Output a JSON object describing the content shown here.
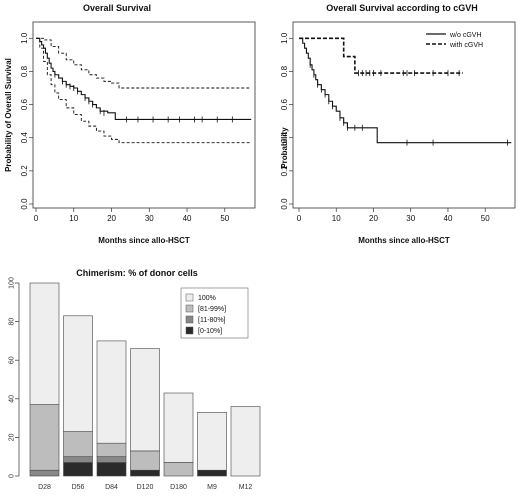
{
  "chart_data": [
    {
      "type": "line",
      "title": "Overall Survival",
      "xlabel": "Months since allo-HSCT",
      "ylabel": "Probability of Overall Survival",
      "xlim": [
        0,
        58
      ],
      "ylim": [
        0,
        1.05
      ],
      "xticks": [
        0,
        10,
        20,
        30,
        40,
        50
      ],
      "yticks": [
        0.0,
        0.2,
        0.4,
        0.6,
        0.8,
        1.0
      ],
      "series": [
        {
          "style": "solid",
          "x": [
            0,
            1,
            1.5,
            2,
            2.5,
            3,
            3.5,
            4,
            4.5,
            5,
            6,
            7,
            8,
            9,
            10,
            11,
            12,
            13,
            14,
            15,
            16,
            17,
            19,
            20,
            21,
            22,
            57
          ],
          "y": [
            1.0,
            0.98,
            0.96,
            0.94,
            0.91,
            0.88,
            0.85,
            0.82,
            0.8,
            0.78,
            0.76,
            0.74,
            0.72,
            0.71,
            0.7,
            0.68,
            0.66,
            0.64,
            0.62,
            0.6,
            0.58,
            0.56,
            0.55,
            0.55,
            0.51,
            0.51,
            0.51
          ]
        },
        {
          "style": "dashed",
          "x": [
            0,
            2,
            4,
            6,
            8,
            10,
            12,
            14,
            16,
            18,
            20,
            22,
            57
          ],
          "y": [
            1.0,
            0.99,
            0.95,
            0.91,
            0.87,
            0.84,
            0.81,
            0.78,
            0.76,
            0.74,
            0.73,
            0.7,
            0.7
          ]
        },
        {
          "style": "dashed",
          "x": [
            0,
            1,
            2,
            3,
            4,
            5,
            6,
            8,
            10,
            12,
            14,
            16,
            18,
            20,
            22,
            57
          ],
          "y": [
            1.0,
            0.94,
            0.86,
            0.78,
            0.72,
            0.67,
            0.63,
            0.58,
            0.54,
            0.5,
            0.47,
            0.44,
            0.41,
            0.39,
            0.37,
            0.37
          ]
        }
      ],
      "censor_x": [
        5,
        7,
        8,
        9,
        10,
        11,
        13,
        14,
        15,
        17,
        18,
        24,
        27,
        31,
        35,
        38,
        42,
        44,
        48,
        52
      ],
      "censor_y": [
        0.78,
        0.74,
        0.72,
        0.71,
        0.7,
        0.68,
        0.64,
        0.62,
        0.6,
        0.56,
        0.55,
        0.51,
        0.51,
        0.51,
        0.51,
        0.51,
        0.51,
        0.51,
        0.51,
        0.51
      ]
    },
    {
      "type": "line",
      "title": "Overall Survival according to cGVH",
      "xlabel": "Months since allo-HSCT",
      "ylabel": "Probability",
      "xlim": [
        0,
        58
      ],
      "ylim": [
        0,
        1.05
      ],
      "xticks": [
        0,
        10,
        20,
        30,
        40,
        50
      ],
      "yticks": [
        0.0,
        0.2,
        0.4,
        0.6,
        0.8,
        1.0
      ],
      "legend_position": "top-right",
      "series": [
        {
          "name": "w/o cGVH",
          "style": "solid",
          "x": [
            0,
            1,
            1.5,
            2,
            2.5,
            3,
            3.5,
            4,
            4.5,
            5,
            6,
            7,
            8,
            9,
            10,
            11,
            12,
            13,
            17,
            21,
            57
          ],
          "y": [
            1.0,
            0.97,
            0.94,
            0.91,
            0.88,
            0.84,
            0.81,
            0.78,
            0.75,
            0.72,
            0.69,
            0.66,
            0.62,
            0.59,
            0.56,
            0.52,
            0.49,
            0.46,
            0.46,
            0.37,
            0.37
          ],
          "censor_x": [
            3,
            4,
            5,
            6,
            7,
            8,
            9,
            11,
            12,
            13,
            15,
            17,
            29,
            36,
            56
          ],
          "censor_y": [
            0.84,
            0.78,
            0.72,
            0.69,
            0.66,
            0.62,
            0.59,
            0.52,
            0.49,
            0.46,
            0.46,
            0.46,
            0.37,
            0.37,
            0.37
          ]
        },
        {
          "name": "with cGVH",
          "style": "dashed",
          "x": [
            0,
            12,
            15,
            44
          ],
          "y": [
            1.0,
            0.89,
            0.79,
            0.79
          ],
          "censor_x": [
            16,
            17,
            18,
            19,
            20,
            22,
            28,
            29,
            31,
            36,
            40,
            43
          ],
          "censor_y": [
            0.79,
            0.79,
            0.79,
            0.79,
            0.79,
            0.79,
            0.79,
            0.79,
            0.79,
            0.79,
            0.79,
            0.79
          ]
        }
      ]
    },
    {
      "type": "bar",
      "stacked": true,
      "title": "Chimerism: % of donor cells",
      "categories": [
        "D28",
        "D56",
        "D84",
        "D120",
        "D180",
        "M9",
        "M12"
      ],
      "ylim": [
        0,
        100
      ],
      "yticks": [
        0,
        20,
        40,
        60,
        80,
        100
      ],
      "legend_position": "top-right",
      "series": [
        {
          "name": "[0-10%]",
          "color": "#2b2b2b",
          "values": [
            0,
            7,
            7,
            3,
            0,
            3,
            0
          ]
        },
        {
          "name": "[11-80%]",
          "color": "#888888",
          "values": [
            3,
            3,
            3,
            0,
            0,
            0,
            0
          ]
        },
        {
          "name": "[81-99%]",
          "color": "#bdbdbd",
          "values": [
            34,
            13,
            7,
            10,
            7,
            0,
            0
          ]
        },
        {
          "name": "100%",
          "color": "#eeeeee",
          "values": [
            63,
            60,
            53,
            53,
            36,
            30,
            36
          ]
        }
      ]
    }
  ]
}
